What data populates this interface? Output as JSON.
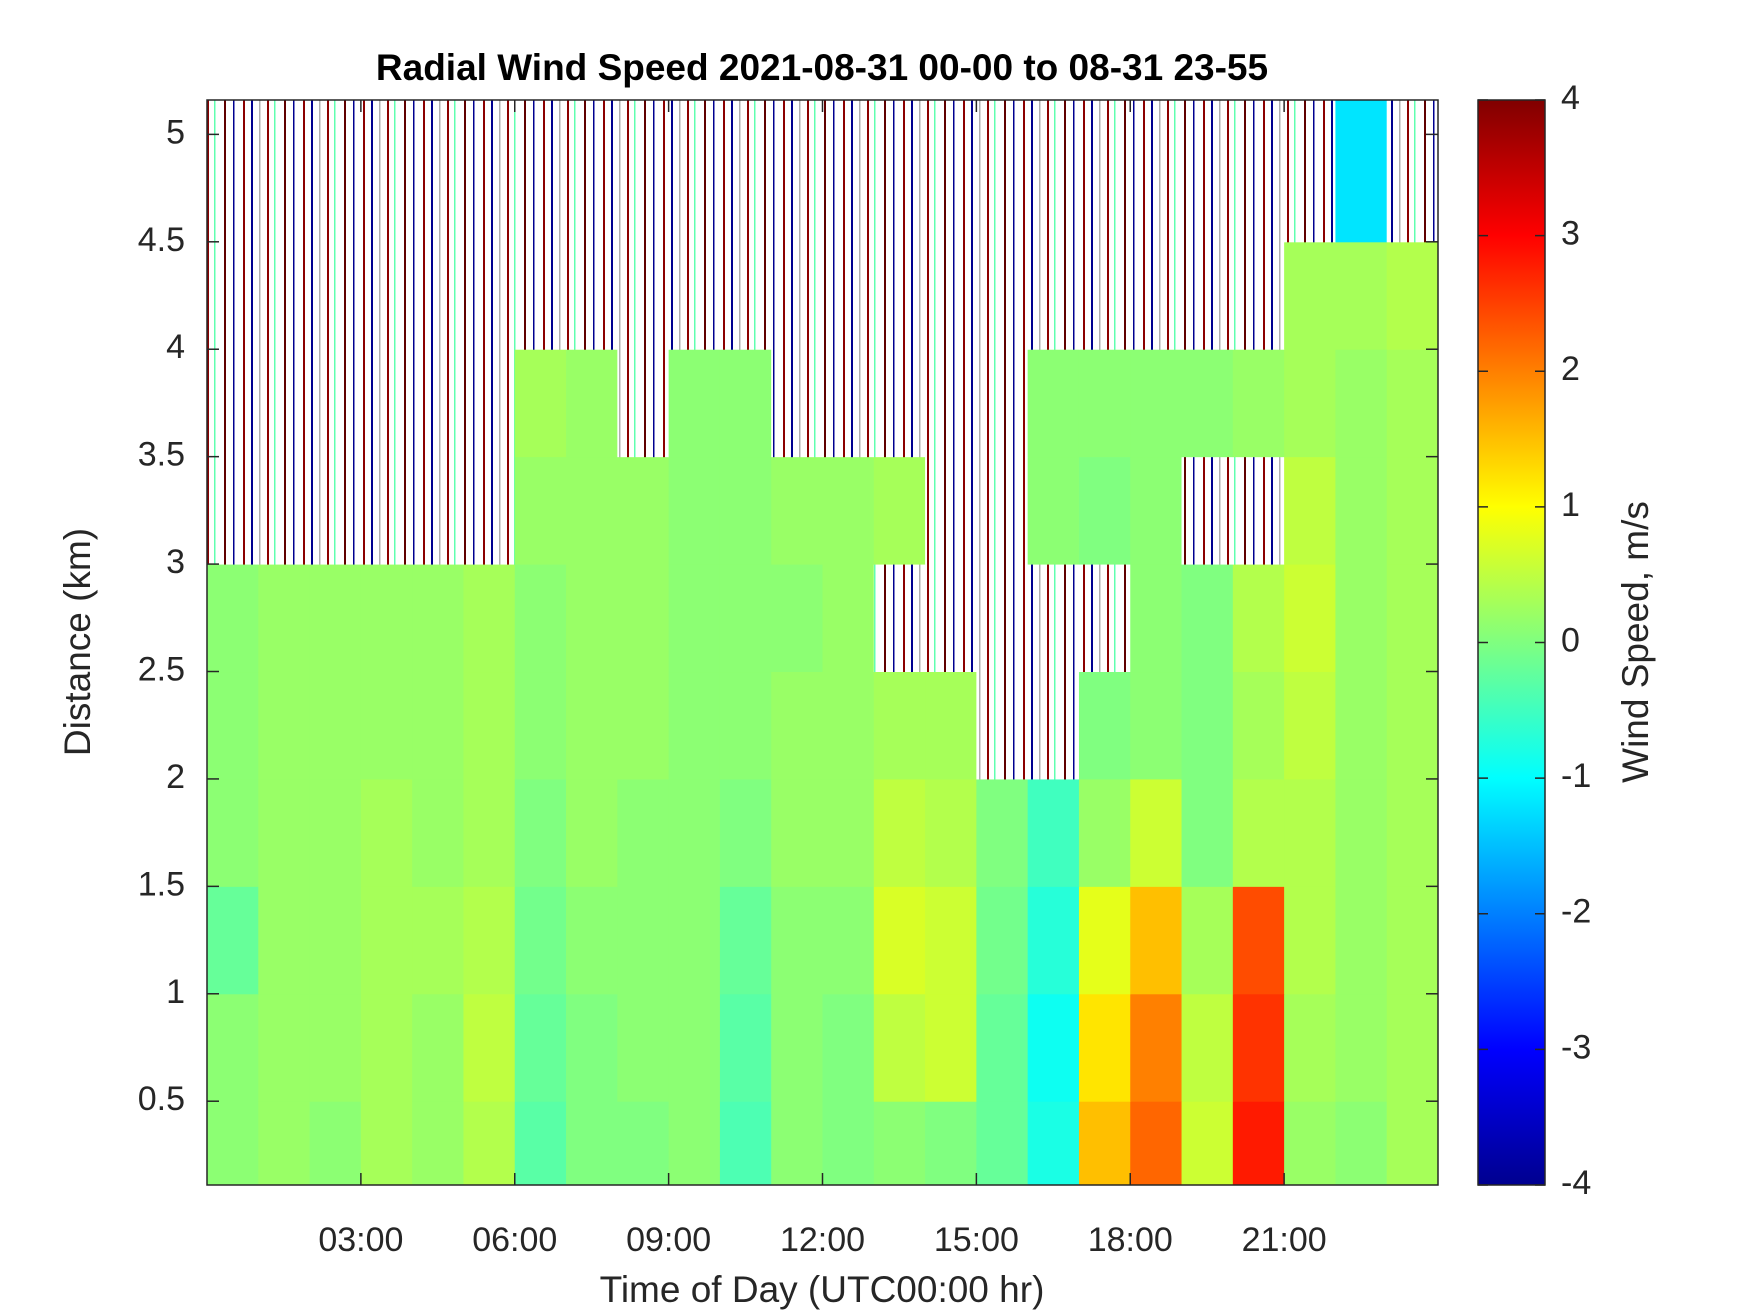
{
  "chart_data": {
    "type": "heatmap",
    "title": "Radial Wind Speed 2021-08-31 00-00 to 08-31 23-55",
    "x_label": "Time of Day (UTC00:00 hr)",
    "y_label": "Distance (km)",
    "colorbar_label": "Wind Speed, m/s",
    "x_edges": [
      0,
      1,
      2,
      3,
      4,
      5,
      6,
      7,
      8,
      9,
      10,
      11,
      12,
      13,
      14,
      15,
      16,
      17,
      18,
      19,
      20,
      21,
      22,
      23,
      24
    ],
    "y_edges": [
      0.11,
      0.5,
      1,
      1.5,
      2,
      2.5,
      3,
      3.5,
      4,
      4.5,
      5.16
    ],
    "z": [
      [
        0.1,
        0.2,
        0.1,
        0.3,
        0.2,
        0.4,
        -0.3,
        0,
        0,
        0.1,
        -0.4,
        0.1,
        0,
        0.1,
        0,
        -0.2,
        -0.8,
        1.5,
        2.2,
        0.6,
        2.8,
        0.2,
        0.1,
        0.3
      ],
      [
        0.1,
        0.2,
        0.2,
        0.3,
        0.2,
        0.5,
        -0.2,
        0,
        0.1,
        0.1,
        -0.3,
        0.1,
        0,
        0.5,
        0.6,
        -0.2,
        -0.9,
        1.2,
        2,
        0.5,
        2.6,
        0.3,
        0.2,
        0.3
      ],
      [
        -0.2,
        0.2,
        0.2,
        0.3,
        0.3,
        0.4,
        -0.1,
        0.1,
        0.1,
        0.1,
        -0.2,
        0.1,
        0.1,
        0.7,
        0.6,
        -0.1,
        -0.7,
        0.8,
        1.5,
        0.3,
        2.4,
        0.4,
        0.2,
        0.3
      ],
      [
        0.1,
        0.2,
        0.2,
        0.3,
        0.2,
        0.3,
        0,
        0.2,
        0.1,
        0.1,
        0,
        0.2,
        0.2,
        0.5,
        0.4,
        0,
        -0.5,
        0.2,
        0.6,
        0,
        0.4,
        0.4,
        0.2,
        0.3
      ],
      [
        0.1,
        0.2,
        0.2,
        0.2,
        0.2,
        0.3,
        0.1,
        0.2,
        0.2,
        0.1,
        0.1,
        0.2,
        0.2,
        0.3,
        0.3,
        null,
        null,
        0,
        0.1,
        0,
        0.3,
        0.5,
        0.2,
        0.3
      ],
      [
        0.1,
        0.2,
        0.2,
        0.2,
        0.2,
        0.3,
        0.1,
        0.2,
        0.2,
        0.1,
        0.1,
        0.1,
        0.2,
        null,
        null,
        null,
        null,
        null,
        0.1,
        0,
        0.4,
        0.6,
        0.2,
        0.3
      ],
      [
        null,
        null,
        null,
        null,
        null,
        null,
        0.2,
        0.2,
        0.2,
        0.1,
        0.1,
        0.2,
        0.2,
        0.3,
        null,
        null,
        0.1,
        0,
        0.1,
        null,
        null,
        0.5,
        0.2,
        0.3
      ],
      [
        null,
        null,
        null,
        null,
        null,
        null,
        0.3,
        0.2,
        null,
        0.1,
        0.1,
        null,
        null,
        null,
        null,
        null,
        0.1,
        0.1,
        0.1,
        0.1,
        0.2,
        0.3,
        0.2,
        0.3
      ],
      [
        null,
        null,
        null,
        null,
        null,
        null,
        null,
        null,
        null,
        null,
        null,
        null,
        null,
        null,
        null,
        null,
        null,
        null,
        null,
        null,
        null,
        0.3,
        0.3,
        0.4
      ],
      [
        null,
        null,
        null,
        null,
        null,
        null,
        null,
        null,
        null,
        null,
        null,
        null,
        null,
        null,
        null,
        null,
        null,
        null,
        null,
        null,
        null,
        null,
        -1.2,
        null
      ]
    ],
    "xlim": [
      0,
      24
    ],
    "xticks": [
      {
        "value": 3,
        "label": "03:00"
      },
      {
        "value": 6,
        "label": "06:00"
      },
      {
        "value": 9,
        "label": "09:00"
      },
      {
        "value": 12,
        "label": "12:00"
      },
      {
        "value": 15,
        "label": "15:00"
      },
      {
        "value": 18,
        "label": "18:00"
      },
      {
        "value": 21,
        "label": "21:00"
      }
    ],
    "ylim": [
      0.11,
      5.16
    ],
    "yticks": [
      0.5,
      1,
      1.5,
      2,
      2.5,
      3,
      3.5,
      4,
      4.5,
      5
    ],
    "clim": [
      -4,
      4
    ],
    "cticks": [
      -4,
      -3,
      -2,
      -1,
      0,
      1,
      2,
      3,
      4
    ],
    "colormap": "jet"
  }
}
